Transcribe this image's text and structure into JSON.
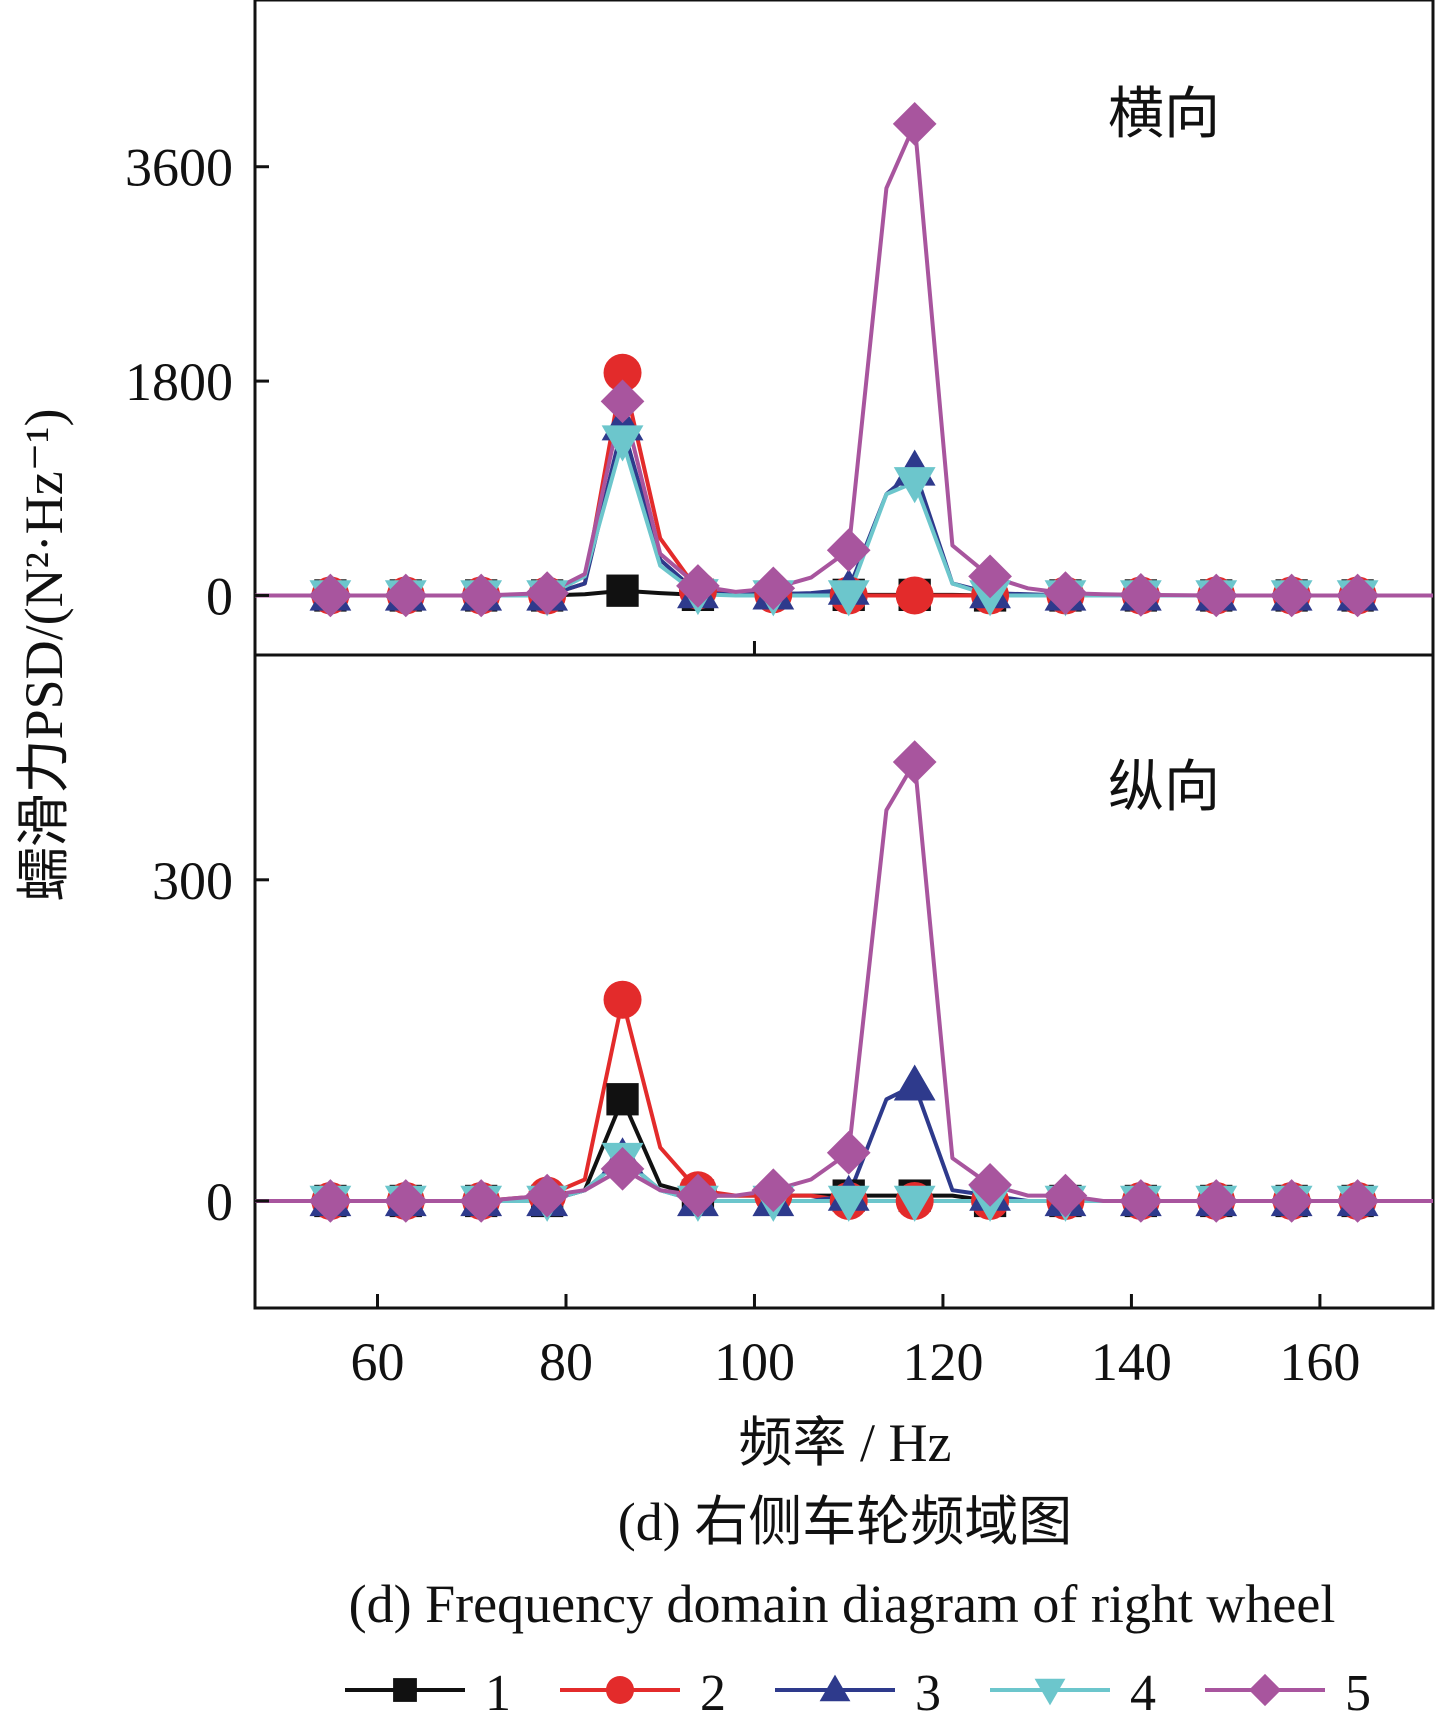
{
  "chart_data": [
    {
      "type": "line",
      "panel_label": "横向",
      "ylabel": "蠕滑力PSD/(N²·Hz⁻¹)",
      "ylim": [
        -500,
        5000
      ],
      "yticks": [
        0,
        1800,
        3600
      ],
      "ytick_labels": [
        "0",
        "1800",
        "3600"
      ],
      "x": [
        47,
        55,
        63,
        71,
        78,
        82,
        86,
        90,
        94,
        98,
        102,
        106,
        110,
        114,
        117,
        121,
        125,
        129,
        133,
        137,
        141,
        149,
        157,
        164,
        172
      ],
      "series": [
        {
          "name": "1",
          "color": "#111111",
          "marker": "square",
          "values": [
            0,
            0,
            0,
            0,
            0,
            10,
            40,
            20,
            5,
            10,
            20,
            10,
            5,
            5,
            5,
            5,
            0,
            0,
            0,
            0,
            0,
            0,
            0,
            0,
            0
          ],
          "marked_x": [
            55,
            63,
            71,
            78,
            86,
            94,
            110,
            117,
            125,
            133,
            141,
            149,
            157,
            164
          ]
        },
        {
          "name": "2",
          "color": "#e32b2b",
          "marker": "circle",
          "values": [
            0,
            0,
            0,
            0,
            0,
            100,
            1870,
            480,
            40,
            10,
            10,
            5,
            0,
            0,
            0,
            0,
            0,
            0,
            0,
            0,
            0,
            0,
            0,
            0,
            0
          ],
          "marked_x": [
            55,
            63,
            71,
            78,
            86,
            94,
            102,
            110,
            117,
            125,
            133,
            141,
            149,
            157,
            164
          ]
        },
        {
          "name": "3",
          "color": "#2e3a8c",
          "marker": "triangle-up",
          "values": [
            0,
            0,
            0,
            0,
            0,
            100,
            1430,
            300,
            20,
            10,
            10,
            20,
            50,
            850,
            1050,
            100,
            20,
            10,
            0,
            0,
            0,
            0,
            0,
            0,
            0
          ],
          "marked_x": [
            55,
            63,
            71,
            78,
            86,
            94,
            102,
            110,
            117,
            125,
            133,
            141,
            149,
            157,
            164
          ]
        },
        {
          "name": "4",
          "color": "#6cc6cc",
          "marker": "triangle-down",
          "values": [
            0,
            0,
            0,
            0,
            0,
            160,
            1300,
            250,
            10,
            0,
            0,
            0,
            0,
            850,
            950,
            100,
            0,
            0,
            0,
            0,
            0,
            0,
            0,
            0,
            0
          ],
          "marked_x": [
            55,
            63,
            71,
            78,
            86,
            94,
            102,
            110,
            117,
            125,
            133,
            141,
            149,
            157,
            164
          ]
        },
        {
          "name": "5",
          "color": "#a8559e",
          "marker": "diamond",
          "values": [
            0,
            0,
            0,
            0,
            20,
            180,
            1630,
            350,
            80,
            30,
            60,
            150,
            380,
            3420,
            3960,
            420,
            160,
            60,
            20,
            10,
            5,
            0,
            0,
            0,
            0
          ],
          "marked_x": [
            55,
            63,
            71,
            78,
            86,
            94,
            102,
            110,
            117,
            125,
            133,
            141,
            149,
            157,
            164
          ]
        }
      ]
    },
    {
      "type": "line",
      "panel_label": "纵向",
      "ylabel": "蠕滑力PSD/(N²·Hz⁻¹)",
      "xlabel": "频率 / Hz",
      "xlim": [
        47,
        172
      ],
      "xticks": [
        60,
        80,
        100,
        120,
        140,
        160
      ],
      "xtick_labels": [
        "60",
        "80",
        "100",
        "120",
        "140",
        "160"
      ],
      "ylim": [
        -100,
        510
      ],
      "yticks": [
        0,
        300
      ],
      "ytick_labels": [
        "0",
        "300"
      ],
      "x": [
        47,
        55,
        63,
        71,
        78,
        82,
        86,
        90,
        94,
        98,
        102,
        106,
        110,
        114,
        117,
        121,
        125,
        129,
        133,
        137,
        141,
        149,
        157,
        164,
        172
      ],
      "series": [
        {
          "name": "1",
          "color": "#111111",
          "marker": "square",
          "values": [
            0,
            0,
            0,
            0,
            0,
            10,
            95,
            15,
            5,
            5,
            5,
            5,
            5,
            5,
            5,
            5,
            0,
            0,
            0,
            0,
            0,
            0,
            0,
            0,
            0
          ],
          "marked_x": [
            55,
            63,
            71,
            78,
            86,
            94,
            110,
            117,
            125,
            133,
            141,
            149,
            157,
            164
          ]
        },
        {
          "name": "2",
          "color": "#e32b2b",
          "marker": "circle",
          "values": [
            0,
            0,
            0,
            0,
            5,
            20,
            188,
            50,
            10,
            5,
            5,
            5,
            0,
            0,
            0,
            0,
            0,
            0,
            0,
            0,
            0,
            0,
            0,
            0,
            0
          ],
          "marked_x": [
            55,
            63,
            71,
            78,
            86,
            94,
            102,
            110,
            117,
            125,
            133,
            141,
            149,
            157,
            164
          ]
        },
        {
          "name": "3",
          "color": "#2e3a8c",
          "marker": "triangle-up",
          "values": [
            0,
            0,
            0,
            0,
            0,
            10,
            40,
            10,
            0,
            0,
            0,
            0,
            5,
            95,
            108,
            10,
            5,
            0,
            0,
            0,
            0,
            0,
            0,
            0,
            0
          ],
          "marked_x": [
            55,
            63,
            71,
            78,
            86,
            94,
            102,
            110,
            117,
            125,
            133,
            141,
            149,
            157,
            164
          ]
        },
        {
          "name": "4",
          "color": "#6cc6cc",
          "marker": "triangle-down",
          "values": [
            0,
            0,
            0,
            0,
            0,
            10,
            40,
            10,
            0,
            0,
            0,
            0,
            0,
            0,
            0,
            0,
            0,
            0,
            0,
            0,
            0,
            0,
            0,
            0,
            0
          ],
          "marked_x": [
            55,
            63,
            71,
            78,
            86,
            94,
            102,
            110,
            117,
            125,
            133,
            141,
            149,
            157,
            164
          ]
        },
        {
          "name": "5",
          "color": "#a8559e",
          "marker": "diamond",
          "values": [
            0,
            0,
            0,
            0,
            5,
            10,
            30,
            10,
            5,
            5,
            10,
            20,
            45,
            365,
            410,
            40,
            15,
            5,
            5,
            0,
            0,
            0,
            0,
            0,
            0
          ],
          "marked_x": [
            55,
            63,
            71,
            78,
            86,
            94,
            102,
            110,
            117,
            125,
            133,
            141,
            149,
            157,
            164
          ]
        }
      ]
    }
  ],
  "xlabel": "频率 / Hz",
  "ylabel": "蠕滑力PSD/(N²·Hz⁻¹)",
  "caption_cn": "(d) 右侧车轮频域图",
  "caption_en": "(d) Frequency domain diagram of right wheel",
  "legend": [
    {
      "label": "1",
      "color": "#111111",
      "marker": "square"
    },
    {
      "label": "2",
      "color": "#e32b2b",
      "marker": "circle"
    },
    {
      "label": "3",
      "color": "#2e3a8c",
      "marker": "triangle-up"
    },
    {
      "label": "4",
      "color": "#6cc6cc",
      "marker": "triangle-down"
    },
    {
      "label": "5",
      "color": "#a8559e",
      "marker": "diamond"
    }
  ]
}
